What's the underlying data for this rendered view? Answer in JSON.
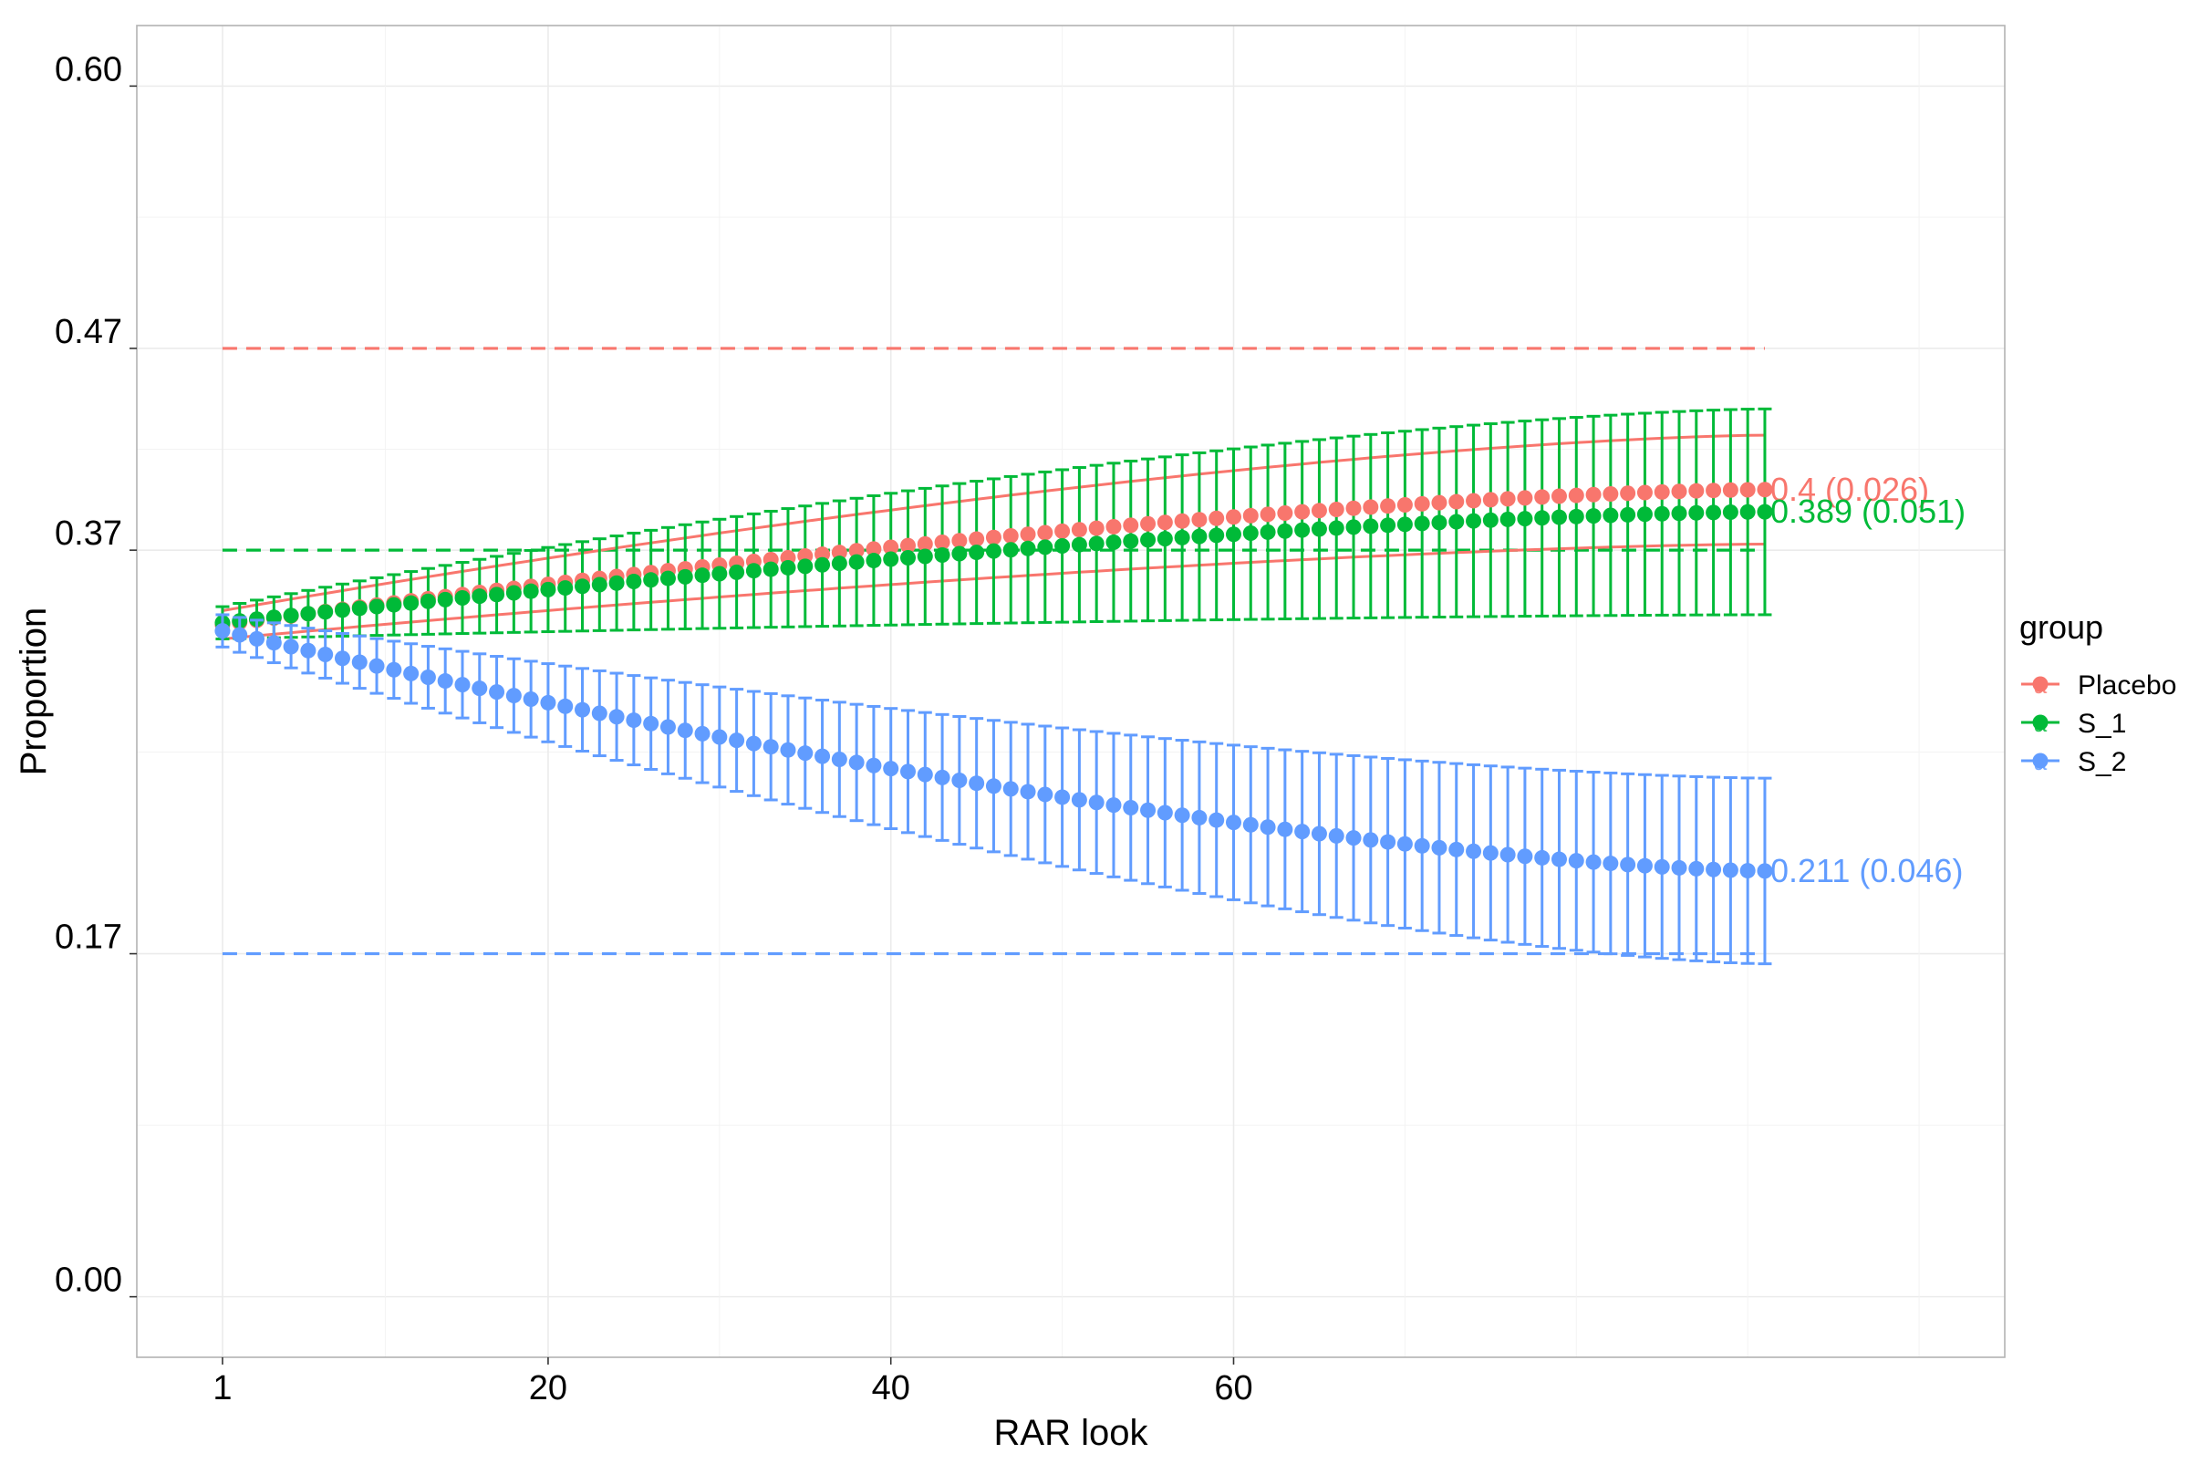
{
  "chart_data": {
    "type": "scatter",
    "xlabel": "RAR look",
    "ylabel": "Proportion",
    "x_ticks": [
      1,
      20,
      40,
      60
    ],
    "y_ticks": [
      0.0,
      0.17,
      0.37,
      0.47,
      0.6
    ],
    "y_tick_labels": [
      "0.00",
      "0.17",
      "0.37",
      "0.47",
      "0.60"
    ],
    "xlim": [
      -4,
      105
    ],
    "ylim": [
      -0.03,
      0.63
    ],
    "grid": true,
    "legend": {
      "title": "group",
      "placement": "right",
      "entries": [
        "Placebo",
        "S_1",
        "S_2"
      ],
      "key_glyph": "a"
    },
    "x_start": 1,
    "x_end": 91,
    "series": [
      {
        "name": "Placebo",
        "color": "#F8766D",
        "target": 0.47,
        "start": {
          "mean": 0.333,
          "lower": 0.326,
          "upper": 0.34
        },
        "end": {
          "mean": 0.4,
          "lower": 0.373,
          "upper": 0.427
        },
        "band_style": "line",
        "end_label": "0.4 (0.026)"
      },
      {
        "name": "S_1",
        "color": "#00BA38",
        "target": 0.37,
        "start": {
          "mean": 0.334,
          "lower": 0.326,
          "upper": 0.342
        },
        "end": {
          "mean": 0.389,
          "lower": 0.338,
          "upper": 0.44
        },
        "band_style": "errorbar",
        "end_label": "0.389 (0.051)"
      },
      {
        "name": "S_2",
        "color": "#619CFF",
        "target": 0.17,
        "start": {
          "mean": 0.33,
          "lower": 0.322,
          "upper": 0.338
        },
        "end": {
          "mean": 0.211,
          "lower": 0.165,
          "upper": 0.257
        },
        "band_style": "errorbar",
        "end_label": "0.211 (0.046)"
      }
    ]
  }
}
